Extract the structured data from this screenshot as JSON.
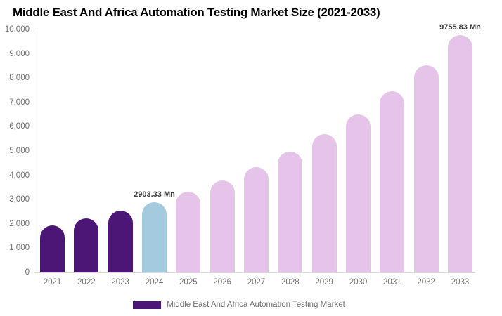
{
  "title": "Middle East And Africa Automation Testing Market Size (2021-2033)",
  "chart_data": {
    "type": "bar",
    "title": "Middle East And Africa Automation Testing Market Size (2021-2033)",
    "categories": [
      "2021",
      "2022",
      "2023",
      "2024",
      "2025",
      "2026",
      "2027",
      "2028",
      "2029",
      "2030",
      "2031",
      "2032",
      "2033"
    ],
    "series": [
      {
        "name": "Middle East And Africa Automation Testing Market",
        "values": [
          1938,
          2218,
          2538,
          2903.33,
          3322,
          3801,
          4349,
          4976,
          5694,
          6515,
          7454,
          8529,
          9755.83
        ]
      }
    ],
    "value_unit": "Mn",
    "bar_colors": [
      "#4c1677",
      "#4c1677",
      "#4c1677",
      "#a3cadd",
      "#e6c3e9",
      "#e6c3e9",
      "#e6c3e9",
      "#e6c3e9",
      "#e6c3e9",
      "#e6c3e9",
      "#e6c3e9",
      "#e6c3e9",
      "#e6c3e9"
    ],
    "data_labels": [
      {
        "category": "2024",
        "text": "2903.33 Mn"
      },
      {
        "category": "2033",
        "text": "9755.83 Mn"
      }
    ],
    "xlabel": "",
    "ylabel": "",
    "ylim": [
      0,
      10000
    ],
    "ytick_step": 1000,
    "ytick_labels": [
      "0",
      "1,000",
      "2,000",
      "3,000",
      "4,000",
      "5,000",
      "6,000",
      "7,000",
      "8,000",
      "9,000",
      "10,000"
    ],
    "grid": false,
    "legend_position": "bottom",
    "legend": [
      {
        "label": "Middle East And Africa Automation Testing Market",
        "color": "#4c1677"
      }
    ],
    "colors": {
      "background": "#ffffff",
      "title_text": "#000000",
      "tick_text": "#707070",
      "data_label_text": "#3a3a3a",
      "axis_line": "#d9d9d9"
    }
  }
}
